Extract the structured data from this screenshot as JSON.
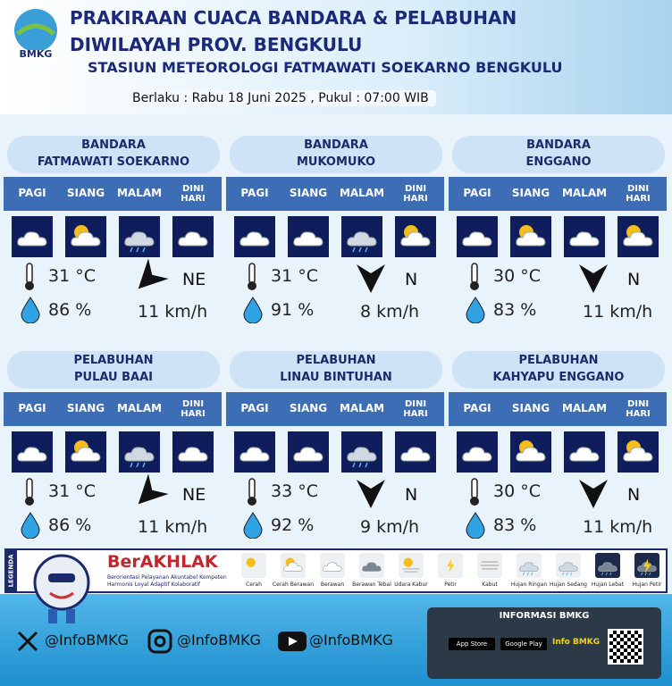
{
  "header": {
    "logo": "BMKG",
    "title_lines": [
      "PRAKIRAAN CUACA BANDARA & PELABUHAN",
      "DIWILAYAH PROV. BENGKULU"
    ],
    "subtitle": "STASIUN METEOROLOGI FATMAWATI SOEKARNO BENGKULU",
    "validity": "Berlaku : Rabu 18 Juni 2025 , Pukul : 07:00 WIB"
  },
  "periods": [
    "PAGI",
    "SIANG",
    "MALAM",
    "DINI HARI"
  ],
  "locations": [
    {
      "type": "BANDARA",
      "name": "FATMAWATI SOEKARNO",
      "weather": [
        "Berawan",
        "Cerah Berawan",
        "Hujan Ringan",
        "Berawan"
      ],
      "temperature": "31 °C",
      "humidity": "86 %",
      "wind_direction": "NE",
      "wind_speed": "11 km/h"
    },
    {
      "type": "BANDARA",
      "name": "MUKOMUKO",
      "weather": [
        "Berawan",
        "Berawan",
        "Hujan Ringan",
        "Cerah Berawan"
      ],
      "temperature": "31 °C",
      "humidity": "91 %",
      "wind_direction": "N",
      "wind_speed": "8 km/h"
    },
    {
      "type": "BANDARA",
      "name": "ENGGANO",
      "weather": [
        "Berawan",
        "Cerah Berawan",
        "Berawan",
        "Cerah Berawan"
      ],
      "temperature": "30 °C",
      "humidity": "83 %",
      "wind_direction": "N",
      "wind_speed": "11 km/h"
    },
    {
      "type": "PELABUHAN",
      "name": "PULAU BAAI",
      "weather": [
        "Berawan",
        "Cerah Berawan",
        "Hujan Ringan",
        "Berawan"
      ],
      "temperature": "31 °C",
      "humidity": "86 %",
      "wind_direction": "NE",
      "wind_speed": "11 km/h"
    },
    {
      "type": "PELABUHAN",
      "name": "LINAU BINTUHAN",
      "weather": [
        "Berawan",
        "Berawan",
        "Hujan Ringan",
        "Berawan"
      ],
      "temperature": "33 °C",
      "humidity": "92 %",
      "wind_direction": "N",
      "wind_speed": "9 km/h"
    },
    {
      "type": "PELABUHAN",
      "name": "KAHYAPU ENGGANO",
      "weather": [
        "Berawan",
        "Cerah Berawan",
        "Berawan",
        "Cerah Berawan"
      ],
      "temperature": "30 °C",
      "humidity": "83 %",
      "wind_direction": "N",
      "wind_speed": "11 km/h"
    }
  ],
  "values_banner": {
    "title": "BerAKHLAK",
    "lines": [
      "Berorientasi Pelayanan Akuntabel Kompeten",
      "Harmonis Loyal Adaptif Kolaboratif"
    ]
  },
  "legend": {
    "label": "LEGENDA",
    "items": [
      "Cerah",
      "Cerah Berawan",
      "Berawan",
      "Berawan Tebal",
      "Udara Kabur",
      "Petir",
      "Kabut",
      "Hujan Ringan",
      "Hujan Sedang",
      "Hujan Lebat",
      "Hujan Petir"
    ]
  },
  "footer": {
    "handles": [
      "@InfoBMKG",
      "@InfoBMKG",
      "@InfoBMKG"
    ],
    "info_title": "INFORMASI BMKG",
    "badges": [
      "App Store",
      "Google Play"
    ],
    "brand": "Info BMKG"
  }
}
